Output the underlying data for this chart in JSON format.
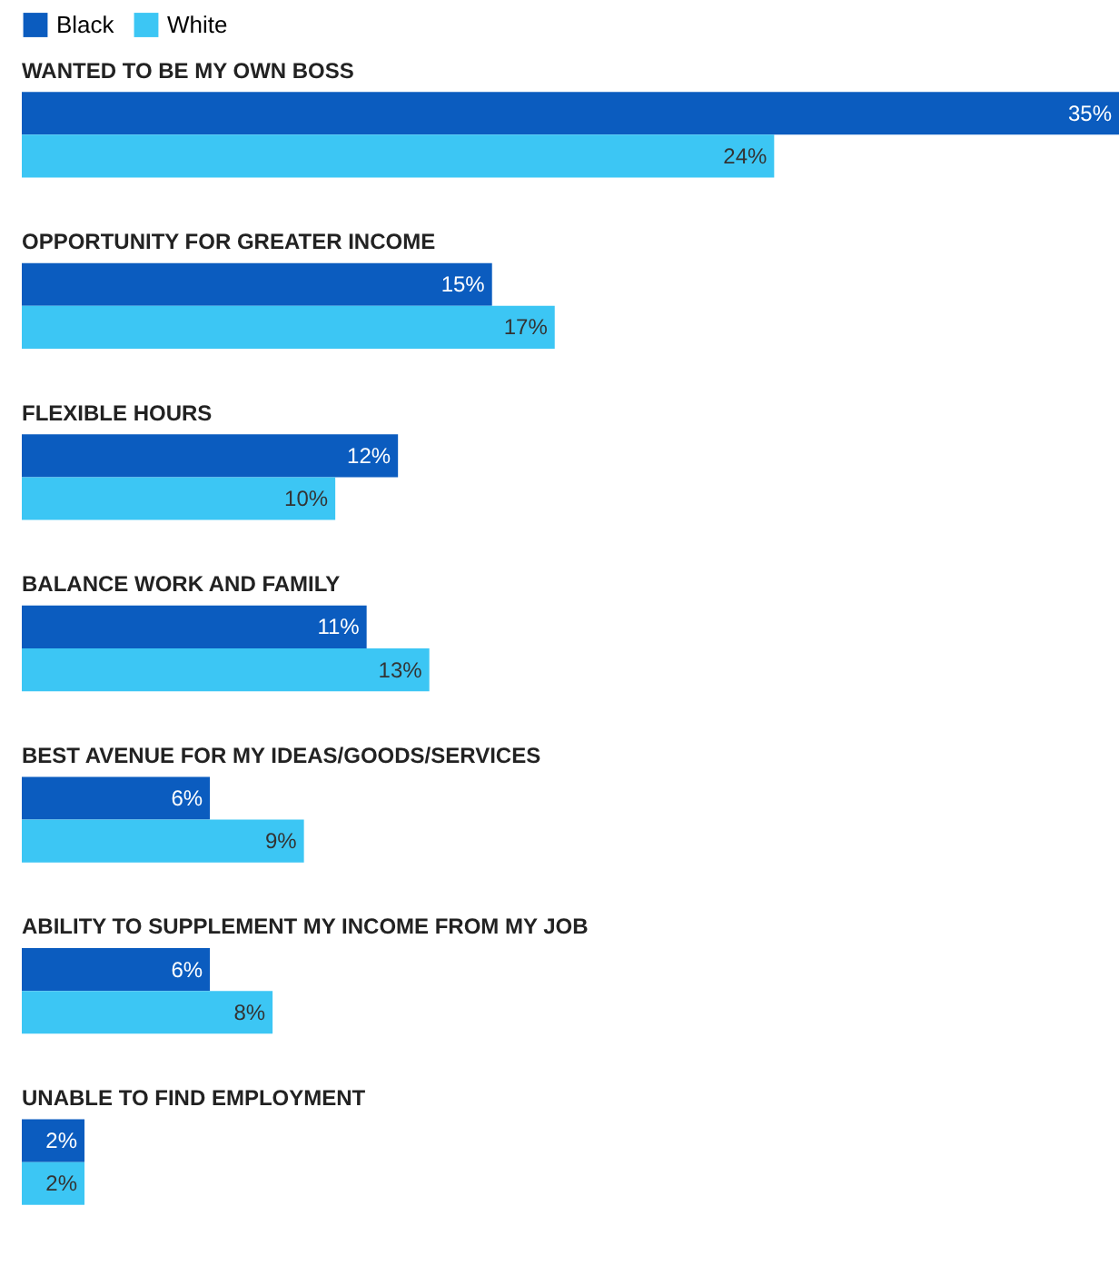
{
  "chart_data": {
    "type": "bar",
    "orientation": "horizontal",
    "legend": "top left",
    "tick_labels": false,
    "categories": [
      "WANTED TO BE MY OWN BOSS",
      "OPPORTUNITY FOR GREATER INCOME",
      "FLEXIBLE HOURS",
      "BALANCE WORK AND FAMILY",
      "BEST AVENUE FOR MY IDEAS/GOODS/SERVICES",
      "ABILITY TO SUPPLEMENT MY INCOME FROM MY JOB",
      "UNABLE TO FIND EMPLOYMENT"
    ],
    "series": [
      {
        "name": "Black",
        "color": "#0b5cbf",
        "values": [
          35,
          15,
          12,
          11,
          6,
          6,
          2
        ],
        "value_labels": [
          "35%",
          "15%",
          "12%",
          "11%",
          "6%",
          "6%",
          "2%"
        ]
      },
      {
        "name": "White",
        "color": "#3cc6f4",
        "values": [
          24,
          17,
          10,
          13,
          9,
          8,
          2
        ],
        "value_labels": [
          "24%",
          "17%",
          "10%",
          "13%",
          "9%",
          "8%",
          "2%"
        ]
      }
    ]
  }
}
